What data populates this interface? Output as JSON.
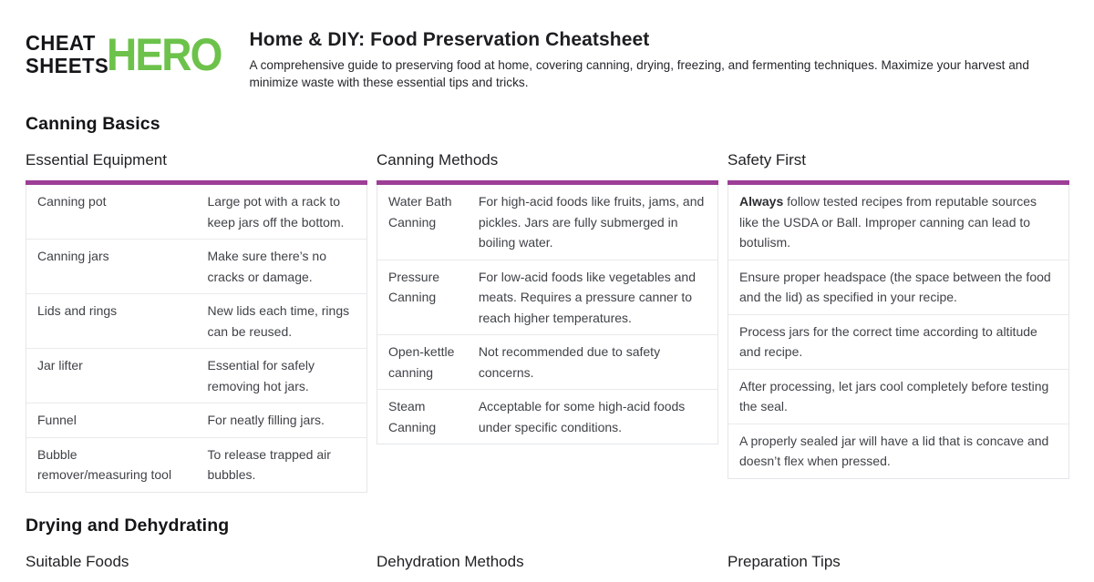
{
  "logo": {
    "word1": "CHEAT",
    "word2": "SHEETS",
    "accent_word": "HERO"
  },
  "header": {
    "title": "Home & DIY: Food Preservation Cheatsheet",
    "subtitle": "A comprehensive guide to preserving food at home, covering canning, drying, freezing, and fermenting techniques. Maximize your harvest and minimize waste with these essential tips and tricks."
  },
  "colors": {
    "accent_purple": "#9C3E96",
    "logo_green": "#6CC24A",
    "body_text": "#3F4247",
    "table_border": "#E5E6E9"
  },
  "canning": {
    "section_title": "Canning Basics",
    "equipment": {
      "title": "Essential Equipment",
      "rows": [
        {
          "term": "Canning pot",
          "desc": "Large pot with a rack to keep jars off the bottom."
        },
        {
          "term": "Canning jars",
          "desc": "Make sure there’s no cracks or damage."
        },
        {
          "term": "Lids and rings",
          "desc": "New lids each time, rings can be reused."
        },
        {
          "term": "Jar lifter",
          "desc": "Essential for safely removing hot jars."
        },
        {
          "term": "Funnel",
          "desc": "For neatly filling jars."
        },
        {
          "term": "Bubble remover/measuring tool",
          "desc": "To release trapped air bubbles."
        }
      ]
    },
    "methods": {
      "title": "Canning Methods",
      "rows": [
        {
          "term": "Water Bath Canning",
          "desc": "For high-acid foods like fruits, jams, and pickles. Jars are fully submerged in boiling water."
        },
        {
          "term": "Pressure Canning",
          "desc": "For low-acid foods like vegetables and meats. Requires a pressure canner to reach higher temperatures."
        },
        {
          "term": "Open-kettle canning",
          "desc": "Not recommended due to safety concerns."
        },
        {
          "term": "Steam Canning",
          "desc": "Acceptable for some high-acid foods under specific conditions."
        }
      ]
    },
    "safety": {
      "title": "Safety First",
      "items": [
        {
          "bold": "Always",
          "text": " follow tested recipes from reputable sources like the USDA or Ball. Improper canning can lead to botulism."
        },
        {
          "bold": "",
          "text": "Ensure proper headspace (the space between the food and the lid) as specified in your recipe."
        },
        {
          "bold": "",
          "text": "Process jars for the correct time according to altitude and recipe."
        },
        {
          "bold": "",
          "text": "After processing, let jars cool completely before testing the seal."
        },
        {
          "bold": "",
          "text": "A properly sealed jar will have a lid that is concave and doesn’t flex when pressed."
        }
      ]
    }
  },
  "drying": {
    "section_title": "Drying and Dehydrating",
    "card_titles": [
      "Suitable Foods",
      "Dehydration Methods",
      "Preparation Tips"
    ]
  }
}
